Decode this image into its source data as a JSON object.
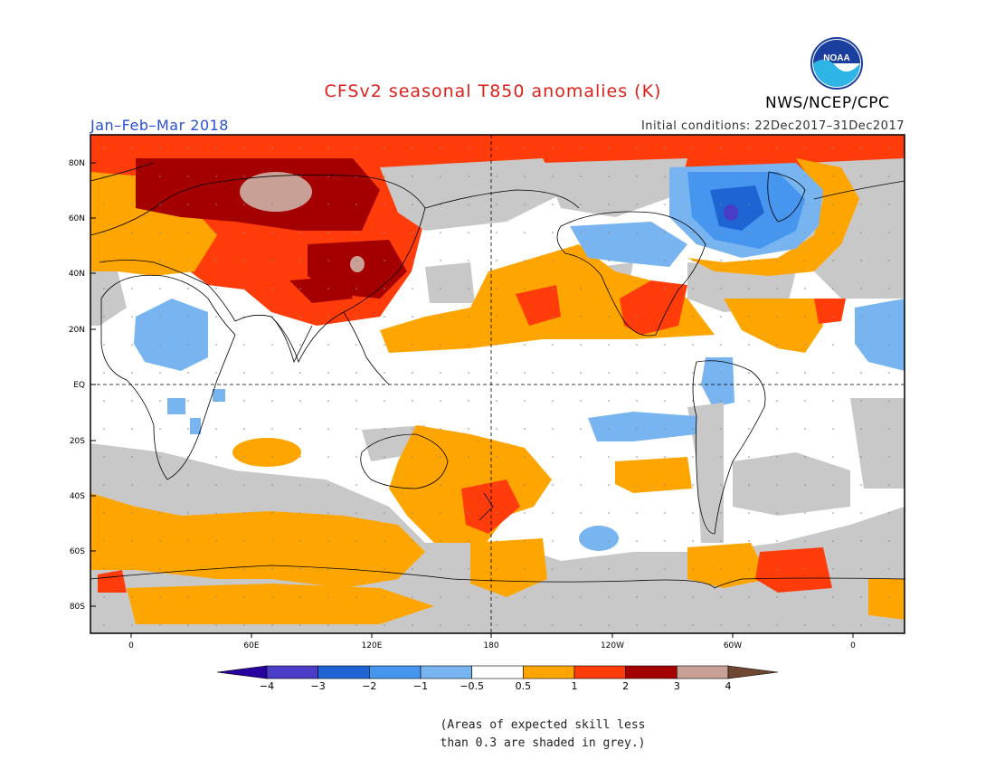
{
  "header": {
    "title": "CFSv2 seasonal T850 anomalies (K)",
    "period": "Jan–Feb–Mar 2018",
    "initial_conditions": "Initial conditions: 22Dec2017–31Dec2017",
    "agency": "NWS/NCEP/CPC",
    "logo_text": "NOAA"
  },
  "map": {
    "lat_labels": [
      "80N",
      "60N",
      "40N",
      "20N",
      "EQ",
      "20S",
      "40S",
      "60S",
      "80S"
    ],
    "lon_labels": [
      "0",
      "60E",
      "120E",
      "180",
      "120W",
      "60W",
      "0"
    ],
    "colors": {
      "grey_low_skill": "#c8c8c8",
      "above_0_5": "#ffa500",
      "above_1": "#ff3c0a",
      "above_2": "#a50000",
      "above_3": "#c8a096",
      "below_0_5": "#78b4f0",
      "below_1": "#4696f0",
      "below_2": "#1e64d2",
      "below_3": "#4b3cc8"
    }
  },
  "colorbar": {
    "labels": [
      "−4",
      "−3",
      "−2",
      "−1",
      "−0.5",
      "0.5",
      "1",
      "2",
      "3",
      "4"
    ],
    "colors": [
      "#2800a0",
      "#4b3cc8",
      "#1e64d2",
      "#4696f0",
      "#78b4f0",
      "#ffffff",
      "#ffa500",
      "#ff3c0a",
      "#a50000",
      "#c8a096",
      "#6e4632"
    ]
  },
  "footnote": {
    "line1": "(Areas of expected skill less",
    "line2": "than 0.3 are shaded in grey.)"
  }
}
